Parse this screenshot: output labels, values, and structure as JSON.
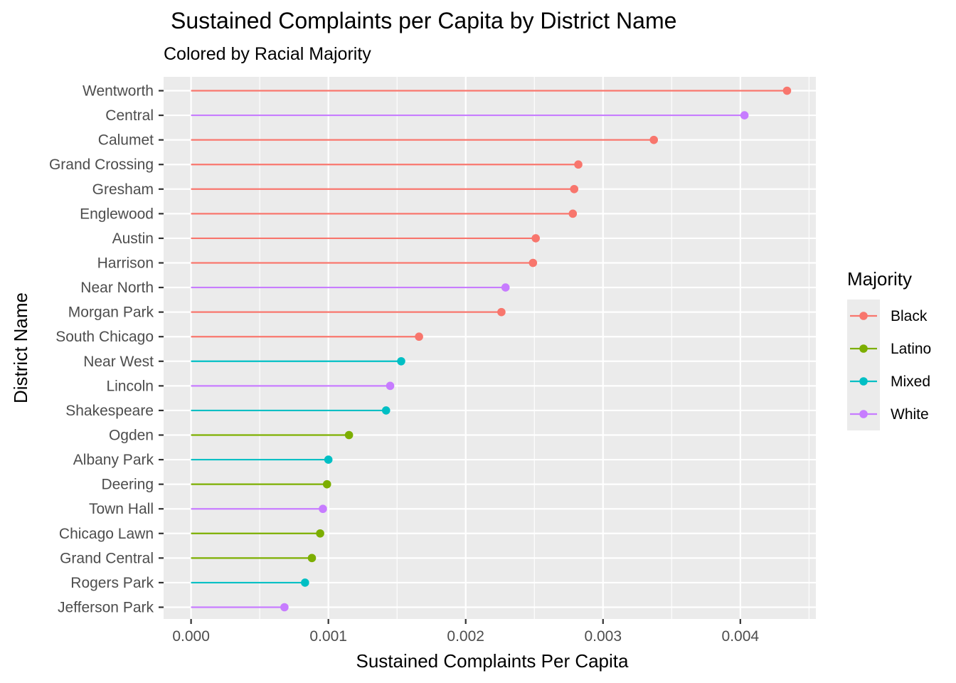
{
  "chart_data": {
    "type": "lollipop",
    "title": "Sustained Complaints per Capita by District Name",
    "subtitle": "Colored by Racial Majority",
    "xlabel": "Sustained Complaints Per Capita",
    "ylabel": "District Name",
    "xlim": [
      -0.0002,
      0.00455
    ],
    "x_ticks": [
      "0.000",
      "0.001",
      "0.002",
      "0.003",
      "0.004"
    ],
    "x_tick_values": [
      0,
      0.001,
      0.002,
      0.003,
      0.004
    ],
    "grid": true,
    "legend": {
      "title": "Majority",
      "position": "right",
      "entries": [
        {
          "name": "Black",
          "color": "#F8766D"
        },
        {
          "name": "Latino",
          "color": "#7CAE00"
        },
        {
          "name": "Mixed",
          "color": "#00BFC4"
        },
        {
          "name": "White",
          "color": "#C77CFF"
        }
      ]
    },
    "points": [
      {
        "district": "Wentworth",
        "value": 0.00434,
        "majority": "Black"
      },
      {
        "district": "Central",
        "value": 0.00403,
        "majority": "White"
      },
      {
        "district": "Calumet",
        "value": 0.00337,
        "majority": "Black"
      },
      {
        "district": "Grand Crossing",
        "value": 0.00282,
        "majority": "Black"
      },
      {
        "district": "Gresham",
        "value": 0.00279,
        "majority": "Black"
      },
      {
        "district": "Englewood",
        "value": 0.00278,
        "majority": "Black"
      },
      {
        "district": "Austin",
        "value": 0.00251,
        "majority": "Black"
      },
      {
        "district": "Harrison",
        "value": 0.00249,
        "majority": "Black"
      },
      {
        "district": "Near North",
        "value": 0.00229,
        "majority": "White"
      },
      {
        "district": "Morgan Park",
        "value": 0.00226,
        "majority": "Black"
      },
      {
        "district": "South Chicago",
        "value": 0.00166,
        "majority": "Black"
      },
      {
        "district": "Near West",
        "value": 0.00153,
        "majority": "Mixed"
      },
      {
        "district": "Lincoln",
        "value": 0.00145,
        "majority": "White"
      },
      {
        "district": "Shakespeare",
        "value": 0.00142,
        "majority": "Mixed"
      },
      {
        "district": "Ogden",
        "value": 0.00115,
        "majority": "Latino"
      },
      {
        "district": "Albany Park",
        "value": 0.001,
        "majority": "Mixed"
      },
      {
        "district": "Deering",
        "value": 0.00099,
        "majority": "Latino"
      },
      {
        "district": "Town Hall",
        "value": 0.00096,
        "majority": "White"
      },
      {
        "district": "Chicago Lawn",
        "value": 0.00094,
        "majority": "Latino"
      },
      {
        "district": "Grand Central",
        "value": 0.00088,
        "majority": "Latino"
      },
      {
        "district": "Rogers Park",
        "value": 0.00083,
        "majority": "Mixed"
      },
      {
        "district": "Jefferson Park",
        "value": 0.00068,
        "majority": "White"
      }
    ]
  }
}
